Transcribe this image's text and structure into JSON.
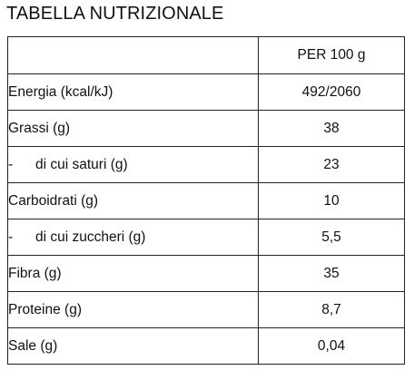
{
  "title": "TABELLA NUTRIZIONALE",
  "table": {
    "header": {
      "col1": "",
      "col2": "PER 100 g"
    },
    "rows": [
      {
        "label": "Energia (kcal/kJ)",
        "value": "492/2060",
        "sub": false
      },
      {
        "label": "Grassi (g)",
        "value": "38",
        "sub": false
      },
      {
        "label": "di cui saturi (g)",
        "value": "23",
        "sub": true,
        "prefix": "-"
      },
      {
        "label": "Carboidrati (g)",
        "value": "10",
        "sub": false
      },
      {
        "label": "di cui zuccheri (g)",
        "value": "5,5",
        "sub": true,
        "prefix": "-"
      },
      {
        "label": "Fibra (g)",
        "value": "35",
        "sub": false
      },
      {
        "label": "Proteine (g)",
        "value": "8,7",
        "sub": false
      },
      {
        "label": "Sale (g)",
        "value": "0,04",
        "sub": false
      }
    ]
  }
}
